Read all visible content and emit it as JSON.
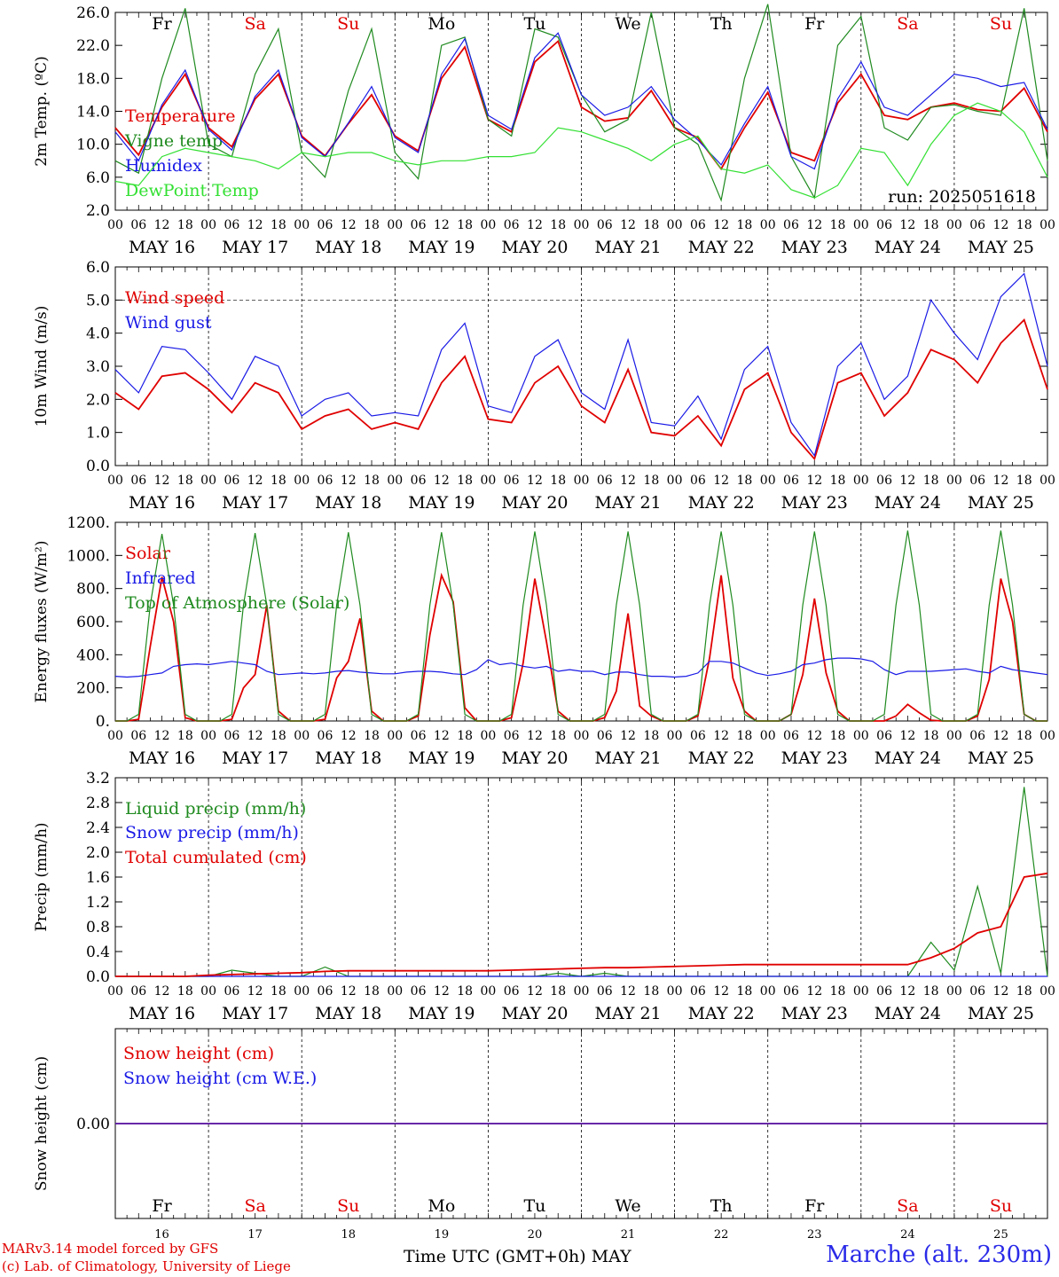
{
  "days": [
    "MAY 16",
    "MAY 17",
    "MAY 18",
    "MAY 19",
    "MAY 20",
    "MAY 21",
    "MAY 22",
    "MAY 23",
    "MAY 24",
    "MAY 25"
  ],
  "day_numbers": [
    "16",
    "17",
    "18",
    "19",
    "20",
    "21",
    "22",
    "23",
    "24",
    "25"
  ],
  "weekdays": [
    "Fr",
    "Sa",
    "Su",
    "Mo",
    "Tu",
    "We",
    "Th",
    "Fr",
    "Sa",
    "Su"
  ],
  "weekend_flags": [
    false,
    true,
    true,
    false,
    false,
    false,
    false,
    false,
    true,
    true
  ],
  "hour_ticks": [
    "00",
    "06",
    "12",
    "18"
  ],
  "run_label": "run: 2025051618",
  "footer": {
    "credit_line1": "MARv3.14 model forced by GFS",
    "credit_line2": "(c) Lab. of Climatology, University of Liege",
    "x_title": "Time UTC (GMT+0h) MAY",
    "station": "Marche (alt. 230m)"
  },
  "colors": {
    "red": "#e00000",
    "blue": "#1a1ae6",
    "dark_green": "#1f8a1f",
    "light_green": "#33e033",
    "grid": "#000000"
  },
  "chart_data": [
    {
      "type": "line",
      "id": "temp",
      "ylabel": "2m Temp. (ºC)",
      "ylim": [
        2.0,
        26.0
      ],
      "yticks": [
        "2.0",
        "6.0",
        "10.0",
        "14.0",
        "18.0",
        "22.0",
        "26.0"
      ],
      "x": [
        0,
        6,
        12,
        18,
        24,
        30,
        36,
        42,
        48,
        54,
        60,
        66,
        72,
        78,
        84,
        90,
        96,
        102,
        108,
        114,
        120,
        126,
        132,
        138,
        144,
        150,
        156,
        162,
        168,
        174,
        180,
        186,
        192,
        198,
        204,
        210,
        216,
        222,
        228,
        234,
        240
      ],
      "series": [
        {
          "name": "Temperature",
          "color": "red",
          "values": [
            12.0,
            8.7,
            14.5,
            18.5,
            12.0,
            9.7,
            15.5,
            18.5,
            11.0,
            8.6,
            12.5,
            16.0,
            11.0,
            9.2,
            18.0,
            21.8,
            13.0,
            11.5,
            20.0,
            22.5,
            14.5,
            12.8,
            13.2,
            16.5,
            12.0,
            10.8,
            7.0,
            12.0,
            16.3,
            9.0,
            8.0,
            15.0,
            18.5,
            13.5,
            13.0,
            14.5,
            15.0,
            14.2,
            14.0,
            16.8,
            11.5
          ]
        },
        {
          "name": "Vigne temp",
          "color": "dark_green",
          "values": [
            8.0,
            6.5,
            18.0,
            26.5,
            10.0,
            8.5,
            18.5,
            24.0,
            9.0,
            6.0,
            16.5,
            24.0,
            9.0,
            5.8,
            22.0,
            23.0,
            13.0,
            11.0,
            24.0,
            23.0,
            16.0,
            11.5,
            13.0,
            26.0,
            12.0,
            10.0,
            3.2,
            18.0,
            27.0,
            8.5,
            3.5,
            22.0,
            25.5,
            12.0,
            10.5,
            14.5,
            14.8,
            14.0,
            13.5,
            26.5,
            8.0
          ]
        },
        {
          "name": "Humidex",
          "color": "blue",
          "values": [
            11.5,
            8.0,
            14.8,
            19.0,
            11.8,
            9.3,
            15.8,
            19.0,
            10.8,
            8.5,
            12.6,
            17.0,
            10.8,
            9.0,
            18.5,
            22.8,
            13.5,
            11.8,
            20.5,
            23.5,
            16.0,
            13.5,
            14.5,
            17.0,
            13.0,
            10.5,
            7.5,
            12.5,
            17.0,
            8.5,
            7.0,
            15.5,
            20.0,
            14.5,
            13.5,
            16.0,
            18.5,
            18.0,
            17.0,
            17.5,
            11.8
          ]
        },
        {
          "name": "DewPoint Temp",
          "color": "light_green",
          "values": [
            5.5,
            5.0,
            8.5,
            9.5,
            9.0,
            8.5,
            8.0,
            7.0,
            9.0,
            8.5,
            9.0,
            9.0,
            8.0,
            7.5,
            8.0,
            8.0,
            8.5,
            8.5,
            9.0,
            12.0,
            11.5,
            10.5,
            9.5,
            8.0,
            10.0,
            11.0,
            7.0,
            6.5,
            7.5,
            4.5,
            3.5,
            5.0,
            9.5,
            9.0,
            5.0,
            10.0,
            13.5,
            15.0,
            14.0,
            11.5,
            6.0
          ]
        }
      ]
    },
    {
      "type": "line",
      "id": "wind",
      "ylabel": "10m Wind (m/s)",
      "ylim": [
        0.0,
        6.0
      ],
      "yticks": [
        "0.0",
        "1.0",
        "2.0",
        "3.0",
        "4.0",
        "5.0",
        "6.0"
      ],
      "x": [
        0,
        6,
        12,
        18,
        24,
        30,
        36,
        42,
        48,
        54,
        60,
        66,
        72,
        78,
        84,
        90,
        96,
        102,
        108,
        114,
        120,
        126,
        132,
        138,
        144,
        150,
        156,
        162,
        168,
        174,
        180,
        186,
        192,
        198,
        204,
        210,
        216,
        222,
        228,
        234,
        240
      ],
      "series": [
        {
          "name": "Wind speed",
          "color": "red",
          "values": [
            2.2,
            1.7,
            2.7,
            2.8,
            2.3,
            1.6,
            2.5,
            2.2,
            1.1,
            1.5,
            1.7,
            1.1,
            1.3,
            1.1,
            2.5,
            3.3,
            1.4,
            1.3,
            2.5,
            3.0,
            1.8,
            1.3,
            2.9,
            1.0,
            0.9,
            1.5,
            0.6,
            2.3,
            2.8,
            1.0,
            0.2,
            2.5,
            2.8,
            1.5,
            2.2,
            3.5,
            3.2,
            2.5,
            3.7,
            4.4,
            2.3
          ]
        },
        {
          "name": "Wind gust",
          "color": "blue",
          "values": [
            2.9,
            2.2,
            3.6,
            3.5,
            2.8,
            2.0,
            3.3,
            3.0,
            1.5,
            2.0,
            2.2,
            1.5,
            1.6,
            1.5,
            3.5,
            4.3,
            1.8,
            1.6,
            3.3,
            3.8,
            2.2,
            1.7,
            3.8,
            1.3,
            1.2,
            2.1,
            0.8,
            2.9,
            3.6,
            1.3,
            0.3,
            3.0,
            3.7,
            2.0,
            2.7,
            5.0,
            4.0,
            3.2,
            5.1,
            5.8,
            3.0
          ]
        }
      ]
    },
    {
      "type": "line",
      "id": "energy",
      "ylabel": "Energy fluxes (W/m²)",
      "ylim": [
        0,
        1200
      ],
      "yticks": [
        "0.",
        "200.",
        "400.",
        "600.",
        "800.",
        "1000.",
        "1200."
      ],
      "x": [
        0,
        3,
        6,
        9,
        12,
        15,
        18,
        21,
        24,
        27,
        30,
        33,
        36,
        39,
        42,
        45,
        48,
        51,
        54,
        57,
        60,
        63,
        66,
        69,
        72,
        75,
        78,
        81,
        84,
        87,
        90,
        93,
        96,
        99,
        102,
        105,
        108,
        111,
        114,
        117,
        120,
        123,
        126,
        129,
        132,
        135,
        138,
        141,
        144,
        147,
        150,
        153,
        156,
        159,
        162,
        165,
        168,
        171,
        174,
        177,
        180,
        183,
        186,
        189,
        192,
        195,
        198,
        201,
        204,
        207,
        210,
        213,
        216,
        219,
        222,
        225,
        228,
        231,
        234,
        237,
        240
      ],
      "series": [
        {
          "name": "Solar",
          "color": "red",
          "values": [
            0,
            0,
            10,
            450,
            870,
            600,
            20,
            0,
            0,
            0,
            10,
            200,
            280,
            700,
            60,
            0,
            0,
            0,
            10,
            260,
            360,
            620,
            60,
            0,
            0,
            0,
            30,
            520,
            880,
            720,
            80,
            0,
            0,
            0,
            20,
            350,
            860,
            480,
            60,
            0,
            0,
            0,
            20,
            180,
            650,
            90,
            30,
            0,
            0,
            0,
            30,
            380,
            880,
            260,
            60,
            0,
            0,
            0,
            40,
            280,
            740,
            290,
            60,
            0,
            0,
            0,
            0,
            30,
            100,
            50,
            5,
            0,
            0,
            0,
            30,
            250,
            860,
            600,
            40,
            0,
            0
          ]
        },
        {
          "name": "Infrared",
          "color": "blue",
          "values": [
            270,
            265,
            270,
            280,
            290,
            330,
            340,
            345,
            340,
            350,
            360,
            350,
            340,
            300,
            280,
            285,
            290,
            285,
            290,
            300,
            305,
            295,
            290,
            285,
            285,
            295,
            300,
            300,
            295,
            285,
            280,
            310,
            370,
            340,
            350,
            330,
            320,
            330,
            300,
            310,
            300,
            300,
            280,
            295,
            295,
            280,
            270,
            270,
            265,
            270,
            290,
            360,
            360,
            350,
            320,
            290,
            275,
            285,
            300,
            340,
            350,
            370,
            380,
            380,
            375,
            360,
            310,
            280,
            300,
            300,
            300,
            305,
            310,
            315,
            300,
            290,
            330,
            310,
            300,
            290,
            280
          ]
        },
        {
          "name": "Top of Atmosphere (Solar)",
          "color": "dark_green",
          "values": [
            0,
            0,
            40,
            700,
            1130,
            700,
            40,
            0,
            0,
            0,
            40,
            700,
            1135,
            700,
            40,
            0,
            0,
            0,
            40,
            700,
            1140,
            700,
            40,
            0,
            0,
            0,
            40,
            700,
            1140,
            700,
            40,
            0,
            0,
            0,
            40,
            700,
            1145,
            700,
            40,
            0,
            0,
            0,
            40,
            700,
            1145,
            700,
            40,
            0,
            0,
            0,
            40,
            700,
            1145,
            700,
            40,
            0,
            0,
            0,
            40,
            700,
            1145,
            700,
            40,
            0,
            0,
            0,
            40,
            700,
            1150,
            700,
            40,
            0,
            0,
            0,
            40,
            700,
            1150,
            700,
            40,
            0,
            0
          ]
        }
      ]
    },
    {
      "type": "line",
      "id": "precip",
      "ylabel": "Precip (mm/h)",
      "ylim": [
        0.0,
        3.2
      ],
      "yticks": [
        "0.0",
        "0.4",
        "0.8",
        "1.2",
        "1.6",
        "2.0",
        "2.4",
        "2.8",
        "3.2"
      ],
      "x": [
        0,
        6,
        12,
        18,
        24,
        30,
        36,
        42,
        48,
        54,
        60,
        66,
        72,
        78,
        84,
        90,
        96,
        102,
        108,
        114,
        120,
        126,
        132,
        138,
        144,
        150,
        156,
        162,
        168,
        174,
        180,
        186,
        192,
        198,
        204,
        210,
        216,
        222,
        228,
        234,
        240
      ],
      "series": [
        {
          "name": "Liquid precip (mm/h)",
          "color": "dark_green",
          "values": [
            0,
            0,
            0,
            0,
            0,
            0.1,
            0.05,
            0,
            0,
            0.15,
            0,
            0,
            0,
            0,
            0,
            0,
            0,
            0,
            0,
            0.05,
            0,
            0.05,
            0,
            0,
            0,
            0,
            0,
            0,
            0,
            0,
            0,
            0,
            0,
            0,
            0,
            0.55,
            0.1,
            1.45,
            0.05,
            3.05,
            0
          ]
        },
        {
          "name": "Snow precip (mm/h)",
          "color": "blue",
          "values": [
            0,
            0,
            0,
            0,
            0,
            0,
            0,
            0,
            0,
            0,
            0,
            0,
            0,
            0,
            0,
            0,
            0,
            0,
            0,
            0,
            0,
            0,
            0,
            0,
            0,
            0,
            0,
            0,
            0,
            0,
            0,
            0,
            0,
            0,
            0,
            0,
            0,
            0,
            0,
            0,
            0
          ]
        },
        {
          "name": "Total cumulated (cm)",
          "color": "red",
          "values": [
            0,
            0,
            0,
            0,
            0.02,
            0.03,
            0.04,
            0.05,
            0.06,
            0.08,
            0.09,
            0.09,
            0.09,
            0.09,
            0.09,
            0.09,
            0.09,
            0.1,
            0.11,
            0.12,
            0.13,
            0.14,
            0.14,
            0.15,
            0.16,
            0.17,
            0.18,
            0.19,
            0.19,
            0.19,
            0.19,
            0.19,
            0.19,
            0.19,
            0.19,
            0.3,
            0.45,
            0.7,
            0.8,
            1.6,
            1.66
          ]
        }
      ]
    },
    {
      "type": "line",
      "id": "snow",
      "ylabel": "Snow height (cm)",
      "ylim": [
        -1,
        1
      ],
      "yticks": [
        "0.00"
      ],
      "x": [
        0,
        240
      ],
      "series": [
        {
          "name": "Snow height (cm)",
          "color": "red",
          "values": [
            0,
            0
          ]
        },
        {
          "name": "Snow height (cm W.E.)",
          "color": "blue",
          "values": [
            0,
            0
          ]
        }
      ]
    }
  ]
}
